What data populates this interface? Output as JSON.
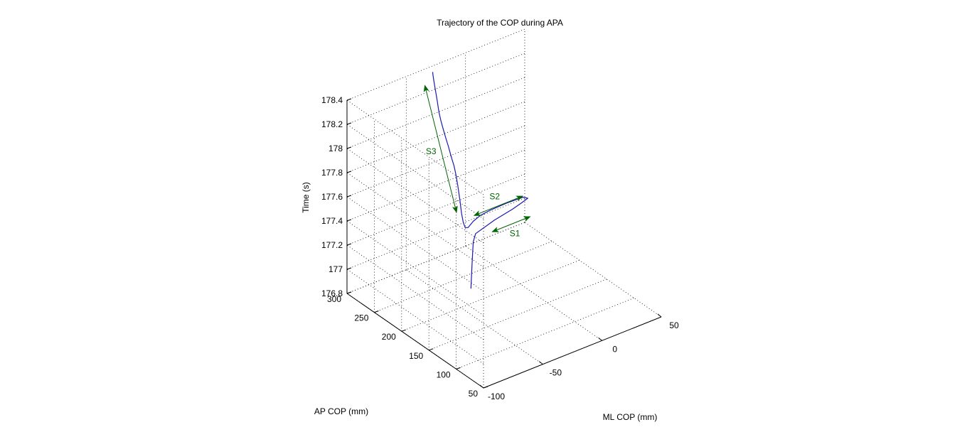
{
  "colors": {
    "background": "#ffffff",
    "axis": "#000000",
    "grid": "#000000",
    "trajectory": "#1a1ab0",
    "annotation": "#006400"
  },
  "chart_data": {
    "type": "line3d",
    "title": "Trajectory of the COP during APA",
    "xlabel": "ML COP (mm)",
    "ylabel": "AP COP (mm)",
    "zlabel": "Time (s)",
    "xlim": [
      -100,
      50
    ],
    "ylim": [
      50,
      300
    ],
    "zlim": [
      176.8,
      178.4
    ],
    "x_ticks": [
      -100,
      -50,
      0,
      50
    ],
    "x_tick_labels": [
      "-100",
      "-50",
      "0",
      "50"
    ],
    "y_ticks": [
      50,
      100,
      150,
      200,
      250,
      300
    ],
    "y_tick_labels": [
      "50",
      "100",
      "150",
      "200",
      "250",
      "300"
    ],
    "z_ticks": [
      176.8,
      177,
      177.2,
      177.4,
      177.6,
      177.8,
      178,
      178.2,
      178.4
    ],
    "z_tick_labels": [
      "176.8",
      "177",
      "177.2",
      "177.4",
      "177.6",
      "177.8",
      "178",
      "178.2",
      "178.4"
    ],
    "grid": true,
    "box": false,
    "view": "isometric",
    "series": [
      {
        "name": "",
        "x": [
          -30,
          -29.5,
          -29,
          -28.5,
          -28,
          -26,
          -10,
          5,
          12,
          18,
          14,
          0,
          -14,
          -22,
          -28,
          -31,
          -31.6,
          -31.4,
          -31,
          -30.6,
          -30.4,
          -30.2,
          -30,
          -29.8,
          -29.5,
          -29.2,
          -29,
          -28.8,
          -28.5,
          -28.2,
          -28,
          -27.6,
          -27.4,
          -27.2,
          -27,
          -26.8
        ],
        "y": [
          225,
          225,
          225,
          225,
          225,
          225,
          225,
          225,
          225,
          225,
          225,
          225,
          225,
          225,
          225,
          228,
          232,
          236,
          240,
          244,
          248,
          252,
          256,
          260,
          264,
          268,
          272,
          276,
          280,
          284,
          288,
          292,
          296,
          299,
          301,
          302
        ],
        "z": [
          176.8,
          176.9,
          177.0,
          177.1,
          177.18,
          177.24,
          177.29,
          177.32,
          177.34,
          177.36,
          177.385,
          177.39,
          177.385,
          177.375,
          177.35,
          177.3,
          177.29,
          177.32,
          177.38,
          177.48,
          177.58,
          177.66,
          177.72,
          177.76,
          177.8,
          177.84,
          177.88,
          177.92,
          177.96,
          178.0,
          178.06,
          178.14,
          178.22,
          178.28,
          178.32,
          178.34
        ]
      }
    ],
    "annotations": [
      {
        "label": "S1",
        "from": [
          -12,
          225,
          177.2
        ],
        "to": [
          20,
          225,
          177.2
        ]
      },
      {
        "label": "S2",
        "from": [
          -25,
          230,
          177.37
        ],
        "to": [
          16,
          230,
          177.37
        ]
      },
      {
        "label": "S3",
        "from": [
          -32,
          247,
          177.37
        ],
        "to": [
          -32,
          305,
          178.24
        ]
      }
    ]
  }
}
